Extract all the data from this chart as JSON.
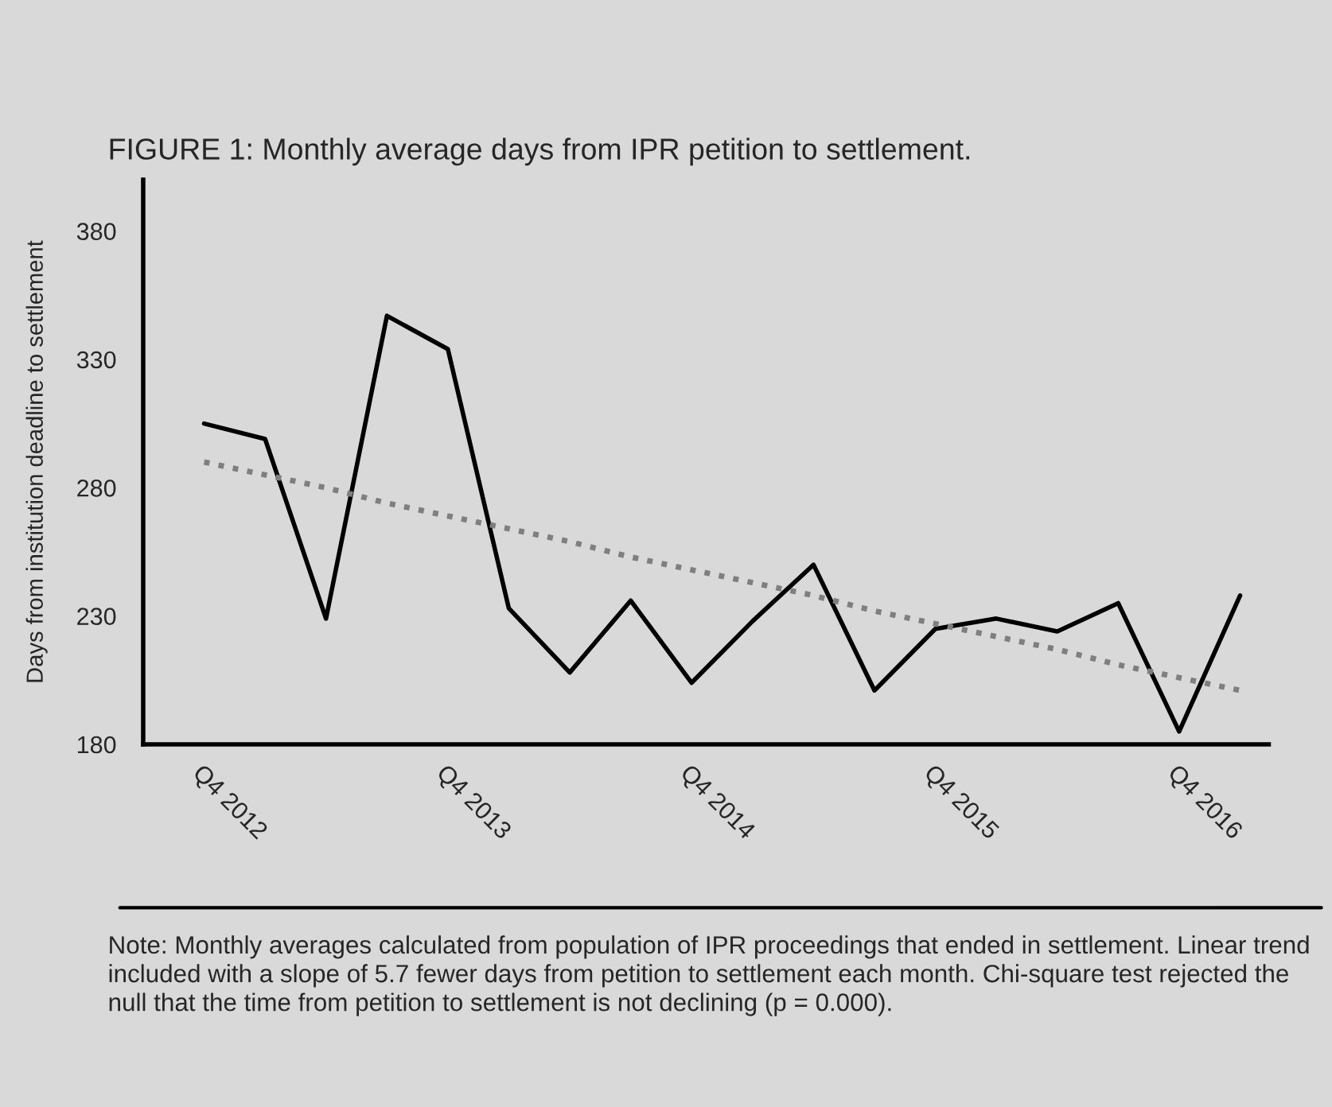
{
  "chart_data": {
    "type": "line",
    "title": "FIGURE 1: Monthly average days from IPR petition to settlement.",
    "ylabel": "Days from institution deadline to settlement",
    "categories": [
      "Q4 2012",
      null,
      null,
      null,
      "Q4 2013",
      null,
      null,
      null,
      "Q4 2014",
      null,
      null,
      null,
      "Q4 2015",
      null,
      null,
      null,
      "Q4 2016",
      null
    ],
    "series": [
      {
        "color": "#000000",
        "line_style": "solid",
        "values": [
          305,
          299,
          229,
          347,
          334,
          233,
          208,
          236,
          204,
          228,
          250,
          201,
          225,
          229,
          224,
          235,
          185,
          238
        ]
      },
      {
        "color": "#7f7f7f",
        "line_style": "dotted",
        "values": [
          290,
          285,
          280,
          274,
          269,
          264,
          259,
          253,
          248,
          243,
          238,
          232,
          227,
          222,
          217,
          211,
          206,
          201
        ]
      }
    ],
    "ylim": [
      180,
      400
    ],
    "yticks": [
      180,
      230,
      280,
      330,
      380
    ],
    "grid": false,
    "legend": false,
    "annotations": [
      "Note: Monthly averages calculated from population of IPR proceedings that ended in settlement. Linear trend included with a slope of 5.7 fewer days from petition to settlement each month. Chi-square test rejected the null that the time from petition to settlement is not declining (p = 0.000)."
    ]
  }
}
